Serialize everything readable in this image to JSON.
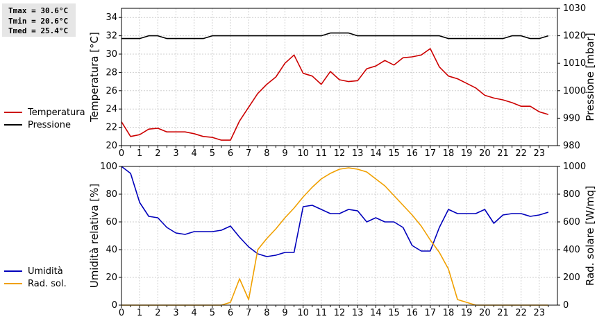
{
  "stats": {
    "tmax": "Tmax = 30.6°C",
    "tmin": "Tmin = 20.6°C",
    "tmed": "Tmed = 25.4°C"
  },
  "legend_top": [
    {
      "label": "Temperatura",
      "color": "#cc0000"
    },
    {
      "label": "Pressione",
      "color": "#000000"
    }
  ],
  "legend_bottom": [
    {
      "label": "Umidità",
      "color": "#0000bb"
    },
    {
      "label": "Rad. sol.",
      "color": "#f0a000"
    }
  ],
  "chart_data": [
    {
      "type": "line",
      "xlim": [
        0,
        24
      ],
      "x_ticks": [
        "0",
        "1",
        "2",
        "3",
        "4",
        "5",
        "6",
        "7",
        "8",
        "9",
        "10",
        "11",
        "12",
        "13",
        "14",
        "15",
        "16",
        "17",
        "18",
        "19",
        "20",
        "21",
        "22",
        "23"
      ],
      "ylabel": "Temperatura [°C]",
      "ylim": [
        20,
        35
      ],
      "y_ticks": [
        "20",
        "22",
        "24",
        "26",
        "28",
        "30",
        "32",
        "34"
      ],
      "y2label": "Pressione [mbar]",
      "y2lim": [
        980,
        1030
      ],
      "y2_ticks": [
        "980",
        "990",
        "1000",
        "1010",
        "1020",
        "1030"
      ],
      "grid": true,
      "series": [
        {
          "name": "Temperatura",
          "axis": "left",
          "color": "#cc0000",
          "x": [
            0,
            0.5,
            1,
            1.5,
            2,
            2.5,
            3,
            3.5,
            4,
            4.5,
            5,
            5.5,
            6,
            6.5,
            7,
            7.5,
            8,
            8.5,
            9,
            9.5,
            10,
            10.5,
            11,
            11.5,
            12,
            12.5,
            13,
            13.5,
            14,
            14.5,
            15,
            15.5,
            16,
            16.5,
            17,
            17.5,
            18,
            18.5,
            19,
            19.5,
            20,
            20.5,
            21,
            21.5,
            22,
            22.5,
            23,
            23.5
          ],
          "y": [
            22.6,
            21.0,
            21.2,
            21.8,
            21.9,
            21.5,
            21.5,
            21.5,
            21.3,
            21.0,
            20.9,
            20.6,
            20.6,
            22.7,
            24.2,
            25.7,
            26.7,
            27.5,
            29.0,
            29.9,
            27.9,
            27.6,
            26.7,
            28.1,
            27.2,
            27.0,
            27.1,
            28.4,
            28.7,
            29.3,
            28.8,
            29.6,
            29.7,
            29.9,
            30.6,
            28.6,
            27.6,
            27.3,
            26.8,
            26.3,
            25.5,
            25.2,
            25.0,
            24.7,
            24.3,
            24.3,
            23.7,
            23.4
          ]
        },
        {
          "name": "Pressione",
          "axis": "right",
          "color": "#000000",
          "x": [
            0,
            0.5,
            1,
            1.5,
            2,
            2.5,
            3,
            3.5,
            4,
            4.5,
            5,
            5.5,
            6,
            6.5,
            7,
            7.5,
            8,
            8.5,
            9,
            9.5,
            10,
            10.5,
            11,
            11.5,
            12,
            12.5,
            13,
            13.5,
            14,
            14.5,
            15,
            15.5,
            16,
            16.5,
            17,
            17.5,
            18,
            18.5,
            19,
            19.5,
            20,
            20.5,
            21,
            21.5,
            22,
            22.5,
            23,
            23.5
          ],
          "y": [
            1019,
            1019,
            1019,
            1020,
            1020,
            1019,
            1019,
            1019,
            1019,
            1019,
            1020,
            1020,
            1020,
            1020,
            1020,
            1020,
            1020,
            1020,
            1020,
            1020,
            1020,
            1020,
            1020,
            1021,
            1021,
            1021,
            1020,
            1020,
            1020,
            1020,
            1020,
            1020,
            1020,
            1020,
            1020,
            1020,
            1019,
            1019,
            1019,
            1019,
            1019,
            1019,
            1019,
            1020,
            1020,
            1019,
            1019,
            1020
          ]
        }
      ]
    },
    {
      "type": "line",
      "xlim": [
        0,
        24
      ],
      "x_ticks": [
        "0",
        "1",
        "2",
        "3",
        "4",
        "5",
        "6",
        "7",
        "8",
        "9",
        "10",
        "11",
        "12",
        "13",
        "14",
        "15",
        "16",
        "17",
        "18",
        "19",
        "20",
        "21",
        "22",
        "23"
      ],
      "ylabel": "Umidità relativa [%]",
      "ylim": [
        0,
        100
      ],
      "y_ticks": [
        "0",
        "20",
        "40",
        "60",
        "80",
        "100"
      ],
      "y2label": "Rad. solare [W/mq]",
      "y2lim": [
        0,
        1000
      ],
      "y2_ticks": [
        "0",
        "200",
        "400",
        "600",
        "800",
        "1000"
      ],
      "grid": true,
      "series": [
        {
          "name": "Umidità",
          "axis": "left",
          "color": "#0000bb",
          "x": [
            0,
            0.5,
            1,
            1.5,
            2,
            2.5,
            3,
            3.5,
            4,
            4.5,
            5,
            5.5,
            6,
            6.5,
            7,
            7.5,
            8,
            8.5,
            9,
            9.5,
            10,
            10.5,
            11,
            11.5,
            12,
            12.5,
            13,
            13.5,
            14,
            14.5,
            15,
            15.5,
            16,
            16.5,
            17,
            17.5,
            18,
            18.5,
            19,
            19.5,
            20,
            20.5,
            21,
            21.5,
            22,
            22.5,
            23,
            23.5
          ],
          "y": [
            100,
            95,
            74,
            64,
            63,
            56,
            52,
            51,
            53,
            53,
            53,
            54,
            57,
            49,
            42,
            37,
            35,
            36,
            38,
            38,
            71,
            72,
            69,
            66,
            66,
            69,
            68,
            60,
            63,
            60,
            60,
            56,
            43,
            39,
            39,
            56,
            69,
            66,
            66,
            66,
            69,
            59,
            65,
            66,
            66,
            64,
            65,
            67
          ]
        },
        {
          "name": "Rad. sol.",
          "axis": "right",
          "color": "#f0a000",
          "x": [
            0,
            1,
            2,
            3,
            4,
            5,
            5.5,
            6,
            6.5,
            7,
            7.5,
            8,
            8.5,
            9,
            9.5,
            10,
            10.5,
            11,
            11.5,
            12,
            12.5,
            13,
            13.5,
            14,
            14.5,
            15,
            15.5,
            16,
            16.5,
            17,
            17.5,
            18,
            18.5,
            19,
            19.5,
            20,
            21,
            22,
            23,
            23.5
          ],
          "y": [
            0,
            0,
            0,
            0,
            0,
            0,
            0,
            20,
            190,
            40,
            400,
            480,
            550,
            630,
            700,
            780,
            850,
            910,
            950,
            980,
            990,
            980,
            960,
            910,
            860,
            790,
            720,
            650,
            570,
            470,
            380,
            260,
            40,
            20,
            0,
            0,
            0,
            0,
            0,
            0
          ]
        }
      ]
    }
  ]
}
